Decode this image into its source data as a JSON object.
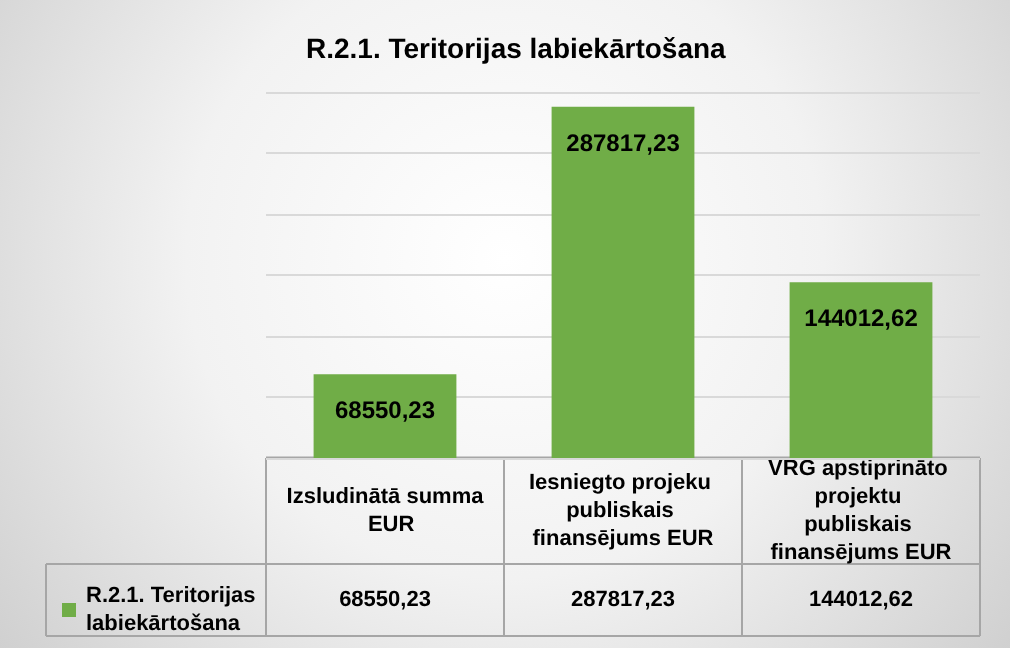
{
  "chart_data": {
    "type": "bar",
    "title": "R.2.1. Teritorijas labiekārtošana",
    "categories": [
      "Izsludinātā summa  EUR",
      "Iesniegto projeku publiskais finansējums EUR",
      "VRG apstiprināto projektu publiskais finansējums EUR"
    ],
    "series": [
      {
        "name": "R.2.1. Teritorijas labiekārtošana",
        "color": "#70ad47",
        "values": [
          68550.23,
          287817.23,
          144012.62
        ],
        "value_labels": [
          "68550,23",
          "287817,23",
          "144012,62"
        ]
      }
    ],
    "grid": "y",
    "legend": "bottom left",
    "tick_labels": "x"
  }
}
